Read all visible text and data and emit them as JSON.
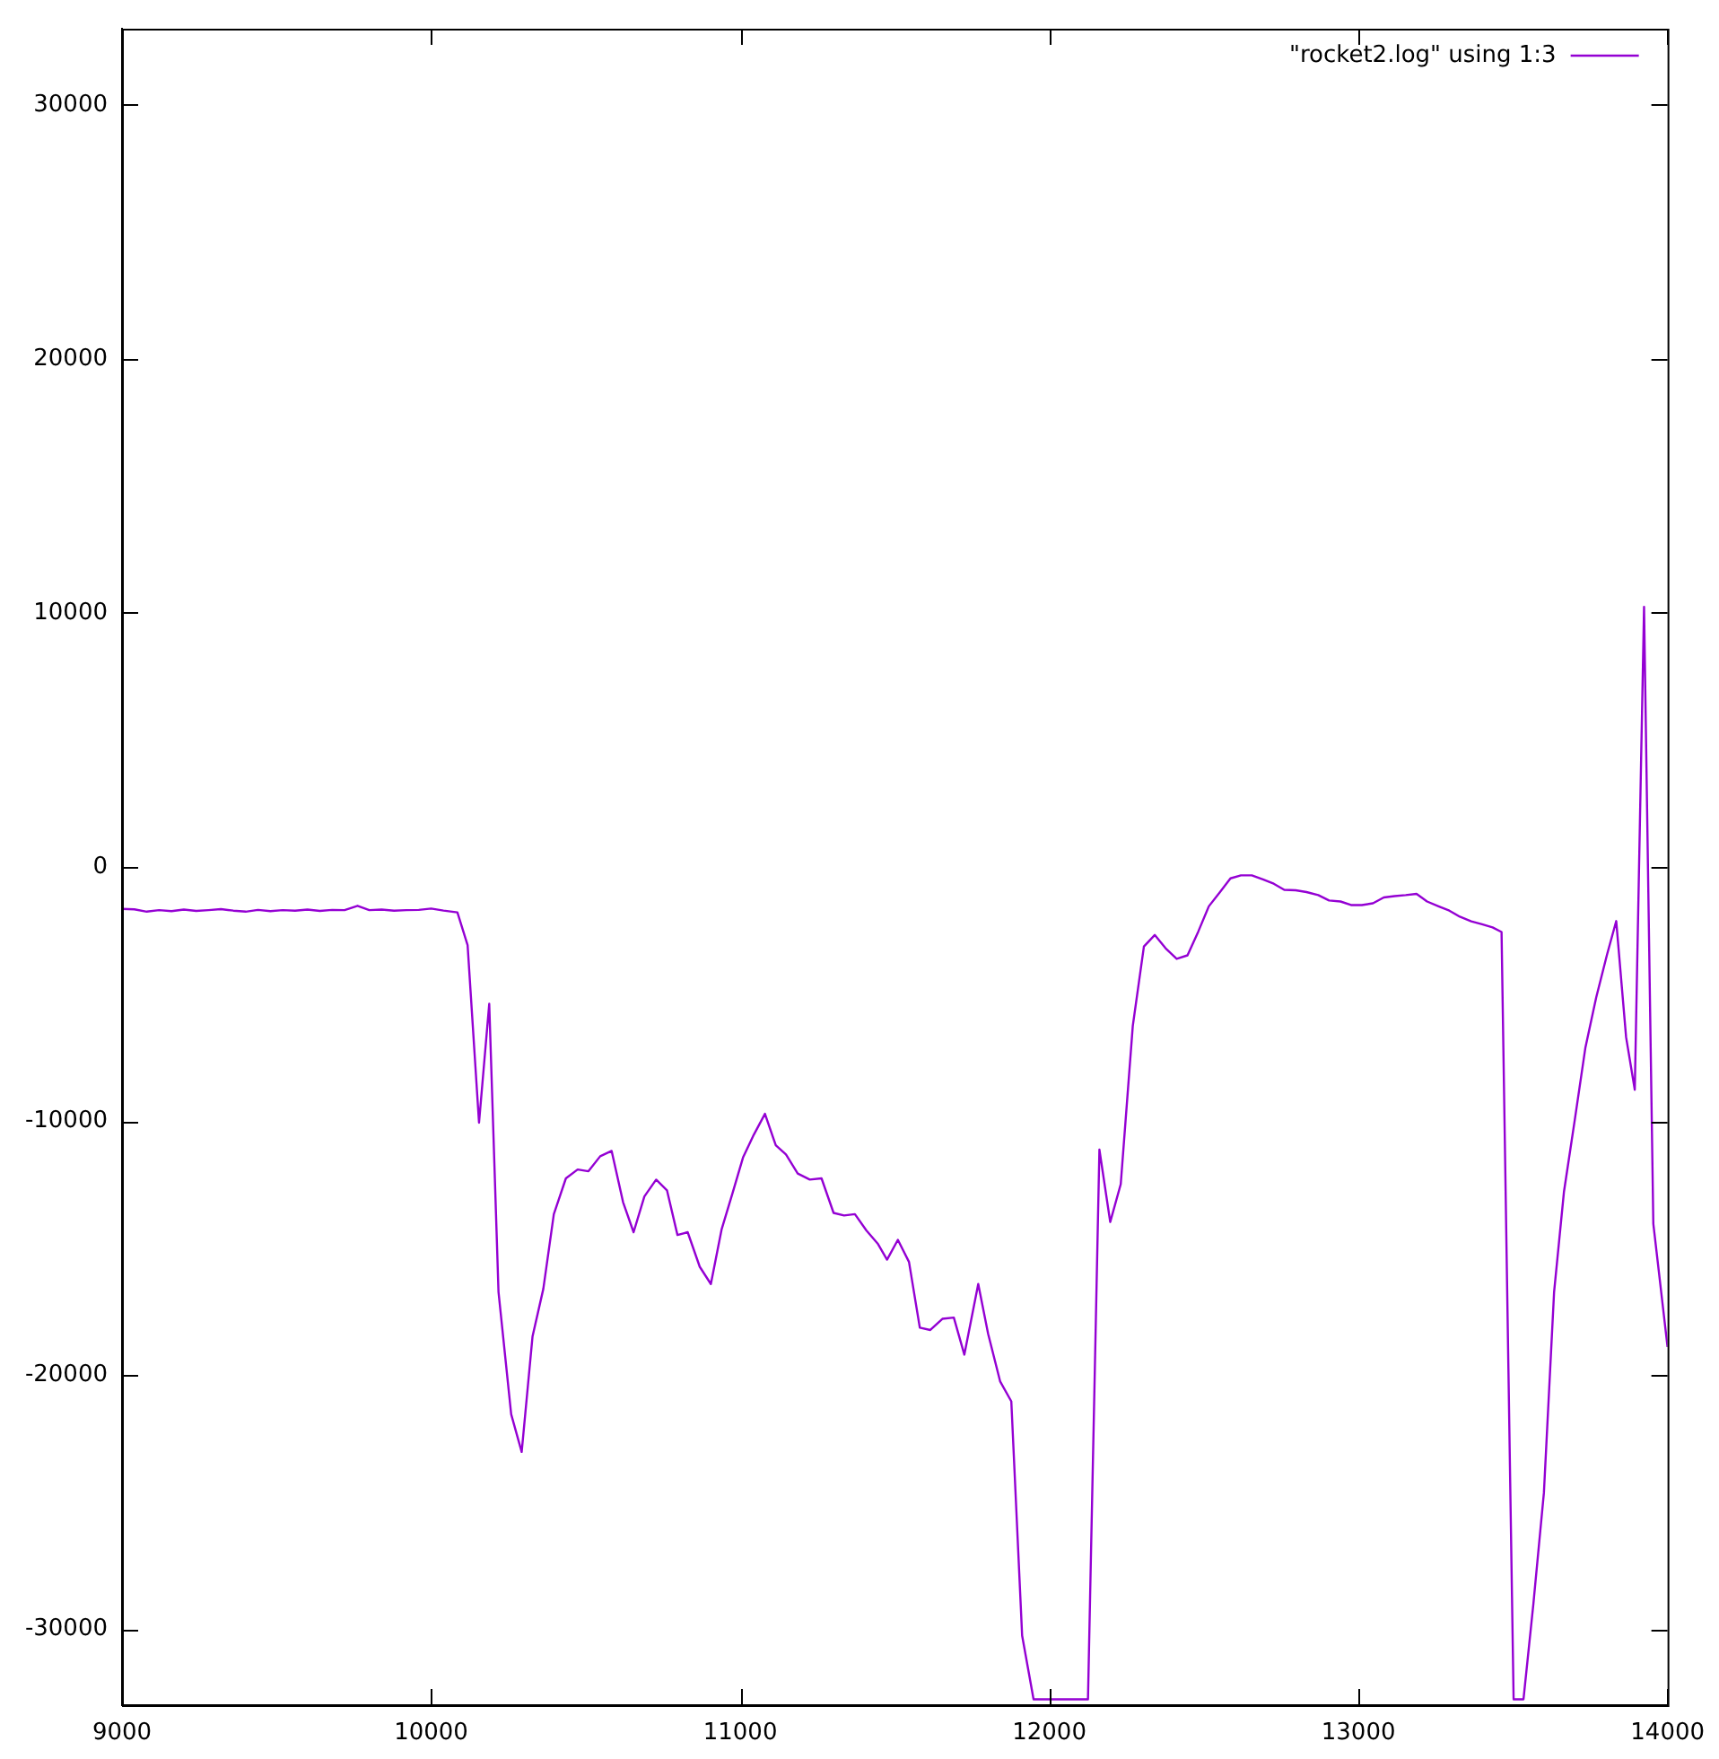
{
  "chart_data": {
    "type": "line",
    "legend": "top right",
    "xlim": [
      9000,
      14000
    ],
    "ylim": [
      -33000,
      33000
    ],
    "xticks": [
      9000,
      10000,
      11000,
      12000,
      13000,
      14000
    ],
    "yticks": [
      -30000,
      -20000,
      -10000,
      0,
      10000,
      20000,
      30000
    ],
    "series": [
      {
        "name": "\"rocket2.log\" using 1:3",
        "color": "#9400d3",
        "x": [
          9000,
          9040,
          9080,
          9120,
          9160,
          9200,
          9240,
          9280,
          9320,
          9360,
          9400,
          9440,
          9480,
          9520,
          9560,
          9600,
          9640,
          9680,
          9720,
          9762,
          9800,
          9840,
          9880,
          9920,
          9960,
          10000,
          10040,
          10085,
          10118,
          10155,
          10188,
          10218,
          10259,
          10293,
          10328,
          10363,
          10397,
          10436,
          10474,
          10509,
          10547,
          10584,
          10621,
          10655,
          10690,
          10728,
          10763,
          10797,
          10830,
          10869,
          10905,
          10940,
          10975,
          11009,
          11044,
          11080,
          11115,
          11148,
          11186,
          11225,
          11263,
          11302,
          11336,
          11371,
          11408,
          11446,
          11475,
          11510,
          11546,
          11581,
          11615,
          11654,
          11691,
          11725,
          11770,
          11802,
          11841,
          11877,
          11912,
          11949,
          11990,
          12030,
          12070,
          12125,
          12162,
          12197,
          12231,
          12270,
          12306,
          12341,
          12376,
          12412,
          12447,
          12482,
          12516,
          12551,
          12586,
          12620,
          12655,
          12691,
          12726,
          12760,
          12797,
          12832,
          12870,
          12905,
          12942,
          12976,
          13011,
          13047,
          13082,
          13117,
          13153,
          13188,
          13222,
          13259,
          13294,
          13328,
          13365,
          13400,
          13434,
          13463,
          13502,
          13534,
          13566,
          13600,
          13633,
          13665,
          13700,
          13734,
          13769,
          13804,
          13834,
          13866,
          13894,
          13924,
          13954,
          14000
        ],
        "values": [
          -1650,
          -1670,
          -1760,
          -1700,
          -1740,
          -1680,
          -1730,
          -1700,
          -1660,
          -1720,
          -1760,
          -1690,
          -1740,
          -1700,
          -1720,
          -1680,
          -1730,
          -1690,
          -1700,
          -1530,
          -1700,
          -1680,
          -1720,
          -1700,
          -1690,
          -1640,
          -1720,
          -1790,
          -3080,
          -10070,
          -5390,
          -16730,
          -21550,
          -23030,
          -18490,
          -16610,
          -13670,
          -12260,
          -11910,
          -11980,
          -11390,
          -11180,
          -13200,
          -14380,
          -12970,
          -12310,
          -12730,
          -14490,
          -14380,
          -15740,
          -16420,
          -14260,
          -12850,
          -11440,
          -10540,
          -9720,
          -10960,
          -11320,
          -12070,
          -12310,
          -12260,
          -13620,
          -13720,
          -13670,
          -14310,
          -14850,
          -15460,
          -14680,
          -15550,
          -18140,
          -18230,
          -17790,
          -17740,
          -19200,
          -16420,
          -18380,
          -20260,
          -21040,
          -30260,
          -32768,
          -32768,
          -32768,
          -32768,
          -32768,
          -11130,
          -13980,
          -12490,
          -6260,
          -3130,
          -2680,
          -3200,
          -3620,
          -3480,
          -2540,
          -1550,
          -1010,
          -450,
          -330,
          -330,
          -490,
          -660,
          -900,
          -920,
          -990,
          -1110,
          -1320,
          -1360,
          -1500,
          -1500,
          -1430,
          -1200,
          -1150,
          -1110,
          -1060,
          -1360,
          -1550,
          -1720,
          -1960,
          -2140,
          -2260,
          -2380,
          -2560,
          -32768,
          -32768,
          -29010,
          -24640,
          -16730,
          -12780,
          -9950,
          -7130,
          -5150,
          -3460,
          -2130,
          -6710,
          -8770,
          10240,
          -14050,
          -18900
        ]
      }
    ]
  }
}
